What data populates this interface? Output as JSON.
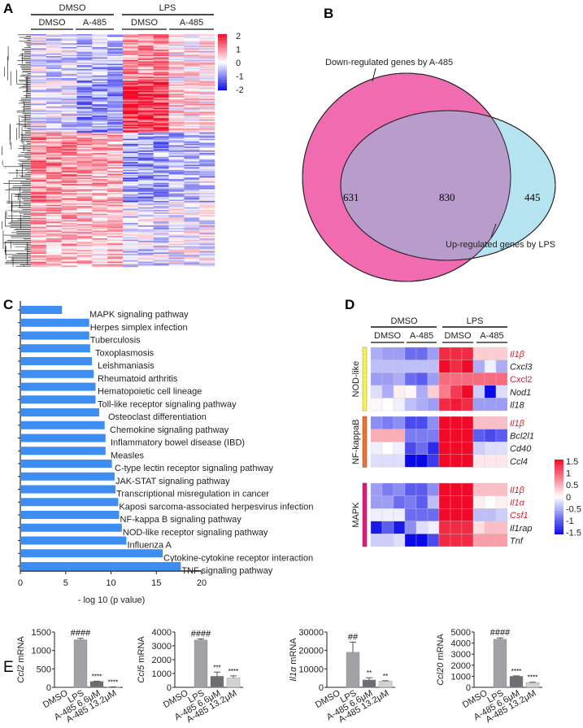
{
  "panels": {
    "a": "A",
    "b": "B",
    "c": "C",
    "d": "D",
    "e": "E"
  },
  "panel_a": {
    "group_labels": [
      "DMSO",
      "LPS"
    ],
    "sub_labels": [
      "DMSO",
      "A-485",
      "DMSO",
      "A-485"
    ],
    "colorbar_ticks": [
      "2",
      "1",
      "0",
      "-1",
      "-2"
    ],
    "colorbar_range": [
      -2,
      2
    ]
  },
  "panel_b": {
    "left_label": "Down-regulated genes by A-485",
    "right_label": "Up-regulated genes by LPS",
    "left_only": "631",
    "overlap": "830",
    "right_only": "445",
    "colors": {
      "left": "#f06bb0",
      "right": "#b6e3f0",
      "overlap": "#b89ccc"
    }
  },
  "chart_data": [
    {
      "panel": "C",
      "type": "bar",
      "orientation": "horizontal",
      "xlabel": "- log 10 (p value)",
      "xlim": [
        0,
        20
      ],
      "xticks": [
        "0",
        "5",
        "10",
        "15",
        "20"
      ],
      "bar_color": "#3d8ef0",
      "categories": [
        "MAPK signaling pathway",
        "Herpes simplex infection",
        "Tuberculosis",
        "Toxoplasmosis",
        "Leishmaniasis",
        "Rheumatoid arthritis",
        "Hematopoietic cell lineage",
        "Toll-like receptor signaling pathway",
        "Osteoclast differentiation",
        "Chemokine signaling pathway",
        "Inflammatory bowel disease (IBD)",
        "Measles",
        "C-type lectin receptor signaling pathway",
        "JAK-STAT signaling pathway",
        "Transcriptional misregulation in cancer",
        "Kaposi sarcoma-associated herpesvirus infection",
        "NF-kappa B signaling pathway",
        "NOD-like receptor signaling pathway",
        "Influenza A",
        "Cytokine-cytokine receptor interaction",
        "TNF signaling pathway"
      ],
      "values": [
        4.6,
        7.6,
        7.6,
        7.7,
        7.9,
        8.1,
        8.3,
        8.3,
        8.7,
        9.3,
        9.4,
        9.4,
        10.1,
        10.4,
        10.5,
        10.8,
        10.9,
        11.2,
        11.7,
        15.7,
        17.7
      ]
    },
    {
      "panel": "D",
      "type": "heatmap",
      "group_labels": [
        "DMSO",
        "LPS"
      ],
      "sub_labels": [
        "DMSO",
        "A-485",
        "DMSO",
        "A-485"
      ],
      "colorbar_ticks": [
        "1.5",
        "1",
        "0.5",
        "0",
        "-0.5",
        "-1",
        "-1.5"
      ],
      "range": [
        -1.5,
        1.5
      ],
      "blocks": [
        {
          "name": "NOD-like",
          "color": "#f5f05a",
          "rows": [
            {
              "gene": "Il1β",
              "highlight": true,
              "values": [
                -0.5,
                -0.6,
                -0.6,
                -0.9,
                -0.9,
                -0.6,
                1.3,
                1.3,
                1.3,
                0.3,
                0.3,
                0.3
              ]
            },
            {
              "gene": "Cxcl3",
              "highlight": false,
              "values": [
                -0.4,
                -0.4,
                -0.4,
                -0.4,
                -0.4,
                -0.4,
                1.5,
                1.3,
                1.5,
                -0.5,
                -0.1,
                -0.5
              ]
            },
            {
              "gene": "Cxcl2",
              "highlight": true,
              "italic": false,
              "values": [
                -0.6,
                -0.6,
                -0.5,
                -0.9,
                -1.0,
                -0.6,
                0.9,
                0.9,
                0.9,
                0.9,
                0.9,
                0.9
              ]
            },
            {
              "gene": "Nod1",
              "highlight": false,
              "values": [
                -0.2,
                -0.5,
                0.1,
                0.05,
                -0.5,
                0.3,
                0.8,
                1.2,
                1.5,
                -0.3,
                -1.5,
                -0.2
              ]
            },
            {
              "gene": "Il18",
              "highlight": false,
              "values": [
                0.05,
                0,
                -0.1,
                -0.4,
                -0.5,
                -0.6,
                1.3,
                1.4,
                1.3,
                -0.6,
                -0.6,
                -0.6
              ]
            }
          ]
        },
        {
          "name": "NF-kappaB",
          "color": "#f07030",
          "rows": [
            {
              "gene": "Il1β",
              "highlight": true,
              "values": [
                -0.7,
                -0.8,
                -0.7,
                -1.1,
                -1.1,
                -0.7,
                1.5,
                1.5,
                1.5,
                0.4,
                0.4,
                0.4
              ]
            },
            {
              "gene": "Bcl2l1",
              "highlight": false,
              "values": [
                0.5,
                0.5,
                0.5,
                -0.8,
                -0.8,
                -0.8,
                1.5,
                1.5,
                1.5,
                -1.0,
                -1.1,
                -1.0
              ]
            },
            {
              "gene": "Cd40",
              "highlight": false,
              "values": [
                -0.1,
                0,
                -0.1,
                -1.1,
                -0.9,
                -1.3,
                1.5,
                1.5,
                1.5,
                -0.3,
                -0.2,
                -0.2
              ]
            },
            {
              "gene": "Ccl4",
              "highlight": false,
              "values": [
                -0.2,
                -0.2,
                -0.2,
                -1.5,
                -1.5,
                -1.2,
                1.5,
                1.5,
                1.5,
                0.15,
                0.15,
                0.15
              ]
            }
          ]
        },
        {
          "name": "MAPK",
          "color": "#e0187a",
          "rows": [
            {
              "gene": "Il1β",
              "highlight": true,
              "values": [
                -0.6,
                -0.8,
                -0.7,
                -1.0,
                -1.0,
                -0.7,
                1.5,
                1.5,
                1.5,
                0.4,
                0.4,
                0.4
              ]
            },
            {
              "gene": "Il1α",
              "highlight": true,
              "values": [
                -0.6,
                -0.6,
                -0.9,
                -0.8,
                -1.0,
                -0.4,
                1.5,
                1.5,
                1.5,
                0.1,
                0,
                0.1
              ]
            },
            {
              "gene": "Csf1",
              "highlight": true,
              "values": [
                -0.1,
                -0.1,
                -0.1,
                -0.9,
                -0.9,
                -0.9,
                1.5,
                1.5,
                1.5,
                -0.4,
                -0.4,
                -0.3
              ]
            },
            {
              "gene": "Il1rap",
              "highlight": false,
              "values": [
                -1.4,
                -1.0,
                -1.4,
                -0.7,
                -0.2,
                -0.1,
                1.3,
                1.3,
                1.3,
                0.2,
                0.4,
                0.4
              ]
            },
            {
              "gene": "Tnf",
              "highlight": false,
              "values": [
                -0.3,
                -0.3,
                -0.2,
                -1.5,
                -1.5,
                -1.1,
                1.3,
                1.3,
                1.3,
                0.6,
                0.6,
                0.6
              ]
            }
          ]
        }
      ]
    },
    {
      "panel": "E",
      "type": "bar",
      "gene": "Ccl2",
      "ylabel_suffix": " mRNA",
      "ylim": [
        0,
        1500
      ],
      "yticks": [
        "0",
        "500",
        "1000",
        "1500"
      ],
      "categories": [
        "DMSO",
        "LPS",
        "A-485 6.6μM",
        "A-485 13.2μM"
      ],
      "values": [
        1,
        1290,
        160,
        10
      ],
      "errors": [
        0,
        40,
        8,
        3
      ],
      "annotations": [
        "",
        "####",
        "****",
        "****"
      ]
    },
    {
      "panel": "E",
      "type": "bar",
      "gene": "Ccl5",
      "ylabel_suffix": " mRNA",
      "ylim": [
        0,
        4000
      ],
      "yticks": [
        "0",
        "1000",
        "2000",
        "3000",
        "4000"
      ],
      "categories": [
        "DMSO",
        "LPS",
        "A-485 6.6μM",
        "A-485 13.2μM"
      ],
      "values": [
        1,
        3420,
        800,
        680
      ],
      "errors": [
        0,
        80,
        300,
        150
      ],
      "annotations": [
        "",
        "####",
        "***",
        "****"
      ]
    },
    {
      "panel": "E",
      "type": "bar",
      "gene": "Il1α",
      "ylabel_suffix": " mRNA",
      "ylim": [
        0,
        30000
      ],
      "yticks": [
        "0",
        "10000",
        "20000",
        "30000"
      ],
      "categories": [
        "DMSO",
        "LPS",
        "A-485 6.6μM",
        "A-485 13.2μM"
      ],
      "values": [
        1,
        19000,
        4000,
        3300
      ],
      "errors": [
        0,
        5500,
        1200,
        300
      ],
      "annotations": [
        "",
        "##",
        "**",
        "**"
      ]
    },
    {
      "panel": "E",
      "type": "bar",
      "gene": "Ccl20",
      "ylabel_suffix": " mRNA",
      "ylim": [
        0,
        5000
      ],
      "yticks": [
        "0",
        "1000",
        "2000",
        "3000",
        "4000",
        "5000"
      ],
      "categories": [
        "DMSO",
        "LPS",
        "A-485 6.6μM",
        "A-485 13.2μM"
      ],
      "values": [
        1,
        4350,
        1000,
        430
      ],
      "errors": [
        0,
        120,
        40,
        30
      ],
      "annotations": [
        "",
        "####",
        "****",
        "****"
      ]
    }
  ],
  "bar_colors_e": [
    "#ffffff",
    "#a2a2a6",
    "#6e6e72",
    "#d2d2d4"
  ],
  "highlight_color": "#d8202a"
}
